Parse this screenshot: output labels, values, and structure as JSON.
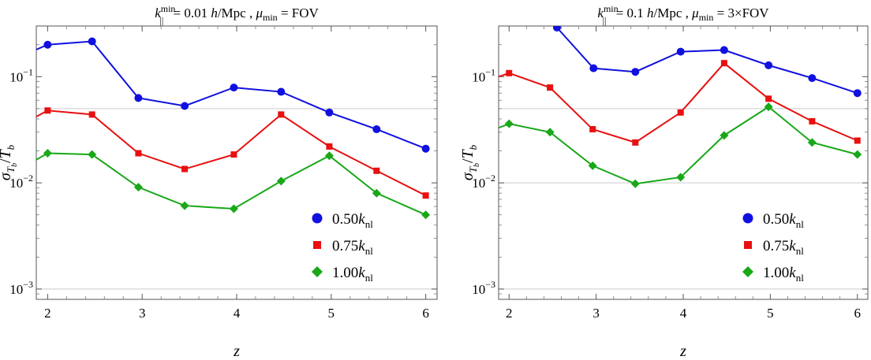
{
  "chart_data": [
    {
      "type": "line",
      "title_parts": {
        "k": "k",
        "sub": "||",
        "sup": "min",
        "eq": " = 0.01 ",
        "h": "h",
        "unit": "/Mpc  ,  ",
        "mu": "μ",
        "mu_sub": "min",
        "rest": " = FOV"
      },
      "xlabel": "z",
      "ylabel_parts": {
        "sigma": "σ",
        "sub_T": "T",
        "sub_b": "b",
        "slash": "/",
        "T": "T",
        "b": "b"
      },
      "xlim": [
        1.88,
        6.12
      ],
      "ylim": [
        0.0008,
        0.3
      ],
      "log_y": true,
      "x_ticks": [
        "2",
        "3",
        "4",
        "5",
        "6"
      ],
      "y_ticks": [
        {
          "base": "10",
          "exp": "−1",
          "value": 0.1
        },
        {
          "base": "10",
          "exp": "−2",
          "value": 0.01
        },
        {
          "base": "10",
          "exp": "−3",
          "value": 0.001
        }
      ],
      "grid_y": [
        0.05,
        0.001
      ],
      "series": [
        {
          "name": "0.50",
          "marker": "circle",
          "color": "#1010e0",
          "x": [
            2.0,
            2.47,
            2.96,
            3.45,
            3.97,
            4.47,
            4.98,
            5.48,
            6.0
          ],
          "values": [
            0.2,
            0.215,
            0.063,
            0.053,
            0.079,
            0.072,
            0.046,
            0.032,
            0.021
          ],
          "lead_in": [
            1.88,
            0.18
          ]
        },
        {
          "name": "0.75",
          "marker": "square",
          "color": "#e81010",
          "x": [
            2.0,
            2.47,
            2.96,
            3.45,
            3.97,
            4.47,
            4.98,
            5.48,
            6.0
          ],
          "values": [
            0.048,
            0.044,
            0.019,
            0.0135,
            0.0185,
            0.044,
            0.022,
            0.013,
            0.0076
          ],
          "lead_in": [
            1.88,
            0.042
          ]
        },
        {
          "name": "1.00",
          "marker": "diamond",
          "color": "#18a818",
          "x": [
            2.0,
            2.47,
            2.96,
            3.45,
            3.97,
            4.47,
            4.98,
            5.48,
            6.0
          ],
          "values": [
            0.019,
            0.0185,
            0.0091,
            0.0061,
            0.0057,
            0.0104,
            0.018,
            0.008,
            0.005
          ],
          "lead_in": [
            1.88,
            0.0165
          ]
        }
      ],
      "legend": {
        "placement": "bottom-right",
        "k_label": "k",
        "k_sub": "nl"
      }
    },
    {
      "type": "line",
      "title_parts": {
        "k": "k",
        "sub": "||",
        "sup": "min",
        "eq": " = 0.1 ",
        "h": "h",
        "unit": "/Mpc  ,  ",
        "mu": "μ",
        "mu_sub": "min",
        "rest": " = 3×FOV"
      },
      "xlabel": "z",
      "ylabel_parts": {
        "sigma": "σ",
        "sub_T": "T",
        "sub_b": "b",
        "slash": "/",
        "T": "T",
        "b": "b"
      },
      "xlim": [
        1.88,
        6.12
      ],
      "ylim": [
        0.0008,
        0.3
      ],
      "log_y": true,
      "x_ticks": [
        "2",
        "3",
        "4",
        "5",
        "6"
      ],
      "y_ticks": [
        {
          "base": "10",
          "exp": "−1",
          "value": 0.1
        },
        {
          "base": "10",
          "exp": "−2",
          "value": 0.01
        },
        {
          "base": "10",
          "exp": "−3",
          "value": 0.001
        }
      ],
      "grid_y": [
        0.05,
        0.01,
        0.001
      ],
      "series": [
        {
          "name": "0.50",
          "marker": "circle",
          "color": "#1010e0",
          "x": [
            2.55,
            2.97,
            3.45,
            3.97,
            4.47,
            4.98,
            5.48,
            6.0
          ],
          "values": [
            0.29,
            0.12,
            0.111,
            0.172,
            0.178,
            0.128,
            0.097,
            0.07
          ],
          "lead_in": null
        },
        {
          "name": "0.75",
          "marker": "square",
          "color": "#e81010",
          "x": [
            2.0,
            2.47,
            2.96,
            3.45,
            3.97,
            4.47,
            4.98,
            5.48,
            6.0
          ],
          "values": [
            0.108,
            0.079,
            0.032,
            0.024,
            0.046,
            0.134,
            0.062,
            0.038,
            0.025
          ],
          "lead_in": [
            1.88,
            0.1
          ]
        },
        {
          "name": "1.00",
          "marker": "diamond",
          "color": "#18a818",
          "x": [
            2.0,
            2.47,
            2.96,
            3.45,
            3.97,
            4.47,
            4.98,
            5.48,
            6.0
          ],
          "values": [
            0.036,
            0.03,
            0.0145,
            0.0098,
            0.0113,
            0.028,
            0.052,
            0.024,
            0.0185
          ],
          "lead_in": [
            1.88,
            0.033
          ]
        }
      ],
      "legend": {
        "placement": "bottom-right",
        "k_label": "k",
        "k_sub": "nl"
      }
    }
  ]
}
